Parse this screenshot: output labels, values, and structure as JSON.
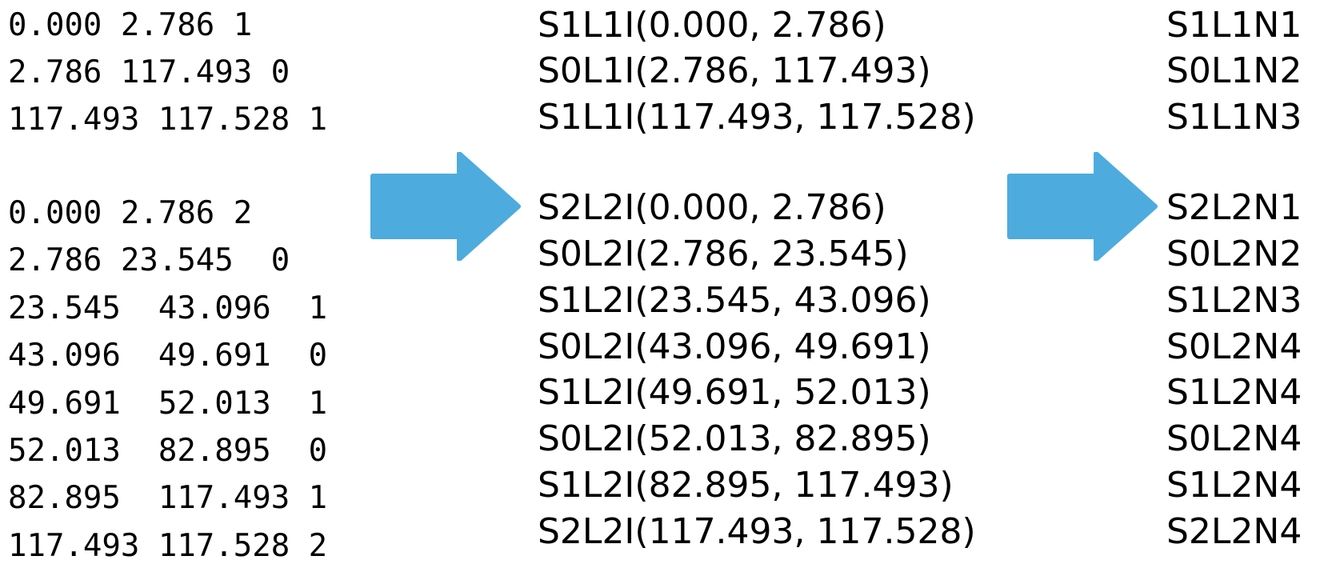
{
  "accent_color": "#4eabde",
  "raw": {
    "group1": [
      "0.000 2.786 1",
      "2.786 117.493 0",
      "117.493 117.528 1"
    ],
    "group2": [
      "0.000 2.786 2",
      "2.786 23.545  0",
      "23.545  43.096  1",
      "43.096  49.691  0",
      "49.691  52.013  1",
      "52.013  82.895  0",
      "82.895  117.493 1",
      "117.493 117.528 2"
    ]
  },
  "intervals": {
    "group1": [
      "S1L1I(0.000, 2.786)",
      "S0L1I(2.786, 117.493)",
      "S1L1I(117.493, 117.528)"
    ],
    "group2": [
      "S2L2I(0.000, 2.786)",
      "S0L2I(2.786, 23.545)",
      "S1L2I(23.545, 43.096)",
      "S0L2I(43.096, 49.691)",
      "S1L2I(49.691, 52.013)",
      "S0L2I(52.013, 82.895)",
      "S1L2I(82.895, 117.493)",
      "S2L2I(117.493, 117.528)"
    ]
  },
  "nodes": {
    "group1": [
      "S1L1N1",
      "S0L1N2",
      "S1L1N3"
    ],
    "group2": [
      "S2L2N1",
      "S0L2N2",
      "S1L2N3",
      "S0L2N4",
      "S1L2N4",
      "S0L2N4",
      "S1L2N4",
      "S2L2N4"
    ]
  },
  "arrows": [
    {
      "name": "arrow-raw-to-intervals",
      "icon": "right-arrow-icon"
    },
    {
      "name": "arrow-intervals-to-nodes",
      "icon": "right-arrow-icon"
    }
  ]
}
